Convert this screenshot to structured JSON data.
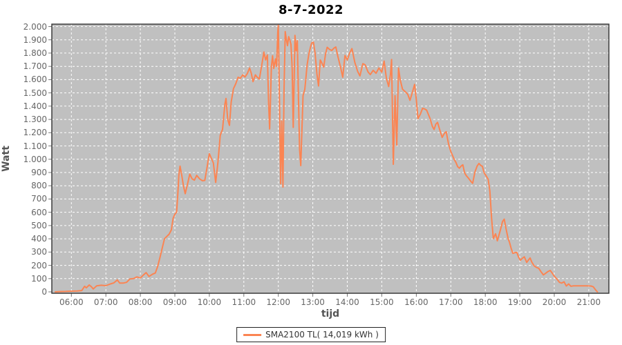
{
  "chart": {
    "title": "8-7-2022",
    "x_axis_label": "tijd",
    "y_axis_label": "Watt",
    "legend_label": "SMA2100 TL( 14,019 kWh )"
  },
  "colors": {
    "series": "#FB8452",
    "plot_background": "#C0C0C0",
    "gridline": "#FFFFFF",
    "plot_border": "#3a3a3a",
    "tick_mark": "#777777",
    "outer_background": "#FFFFFF"
  },
  "chart_data": {
    "type": "line",
    "title": "8-7-2022",
    "xlabel": "tijd",
    "ylabel": "Watt",
    "grid": true,
    "legend_position": "bottom",
    "ylim": [
      0,
      2020
    ],
    "x_domain": [
      "05:26",
      "21:35"
    ],
    "x_ticks": [
      "06:00",
      "07:00",
      "08:00",
      "09:00",
      "10:00",
      "11:00",
      "12:00",
      "13:00",
      "14:00",
      "15:00",
      "16:00",
      "17:00",
      "18:00",
      "19:00",
      "20:00",
      "21:00"
    ],
    "y_tick_values": [
      0,
      100,
      200,
      300,
      400,
      500,
      600,
      700,
      800,
      900,
      1000,
      1100,
      1200,
      1300,
      1400,
      1500,
      1600,
      1700,
      1800,
      1900,
      2000
    ],
    "y_tick_labels": [
      "0",
      "100",
      "200",
      "300",
      "400",
      "500",
      "600",
      "700",
      "800",
      "900",
      "1.000",
      "1.100",
      "1.200",
      "1.300",
      "1.400",
      "1.500",
      "1.600",
      "1.700",
      "1.800",
      "1.900",
      "2.000"
    ],
    "series": [
      {
        "name": "SMA2100 TL( 14,019 kWh )",
        "color": "#FB8452",
        "points": [
          [
            "05:32",
            0
          ],
          [
            "05:40",
            2
          ],
          [
            "05:50",
            3
          ],
          [
            "06:00",
            5
          ],
          [
            "06:10",
            6
          ],
          [
            "06:18",
            10
          ],
          [
            "06:23",
            42
          ],
          [
            "06:26",
            30
          ],
          [
            "06:31",
            52
          ],
          [
            "06:35",
            38
          ],
          [
            "06:38",
            22
          ],
          [
            "06:44",
            46
          ],
          [
            "06:52",
            50
          ],
          [
            "07:00",
            47
          ],
          [
            "07:08",
            60
          ],
          [
            "07:14",
            68
          ],
          [
            "07:20",
            90
          ],
          [
            "07:24",
            66
          ],
          [
            "07:30",
            66
          ],
          [
            "07:36",
            72
          ],
          [
            "07:42",
            98
          ],
          [
            "07:48",
            100
          ],
          [
            "07:54",
            113
          ],
          [
            "08:00",
            105
          ],
          [
            "08:05",
            126
          ],
          [
            "08:10",
            145
          ],
          [
            "08:15",
            116
          ],
          [
            "08:21",
            133
          ],
          [
            "08:26",
            142
          ],
          [
            "08:30",
            190
          ],
          [
            "08:34",
            258
          ],
          [
            "08:38",
            330
          ],
          [
            "08:42",
            400
          ],
          [
            "08:46",
            418
          ],
          [
            "08:50",
            435
          ],
          [
            "08:54",
            468
          ],
          [
            "08:57",
            555
          ],
          [
            "09:00",
            585
          ],
          [
            "09:03",
            600
          ],
          [
            "09:05",
            730
          ],
          [
            "09:07",
            880
          ],
          [
            "09:09",
            948
          ],
          [
            "09:12",
            878
          ],
          [
            "09:15",
            798
          ],
          [
            "09:18",
            740
          ],
          [
            "09:22",
            812
          ],
          [
            "09:26",
            888
          ],
          [
            "09:30",
            852
          ],
          [
            "09:34",
            842
          ],
          [
            "09:38",
            878
          ],
          [
            "09:43",
            852
          ],
          [
            "09:48",
            838
          ],
          [
            "09:52",
            840
          ],
          [
            "09:56",
            938
          ],
          [
            "10:00",
            1042
          ],
          [
            "10:04",
            1002
          ],
          [
            "10:07",
            972
          ],
          [
            "10:11",
            825
          ],
          [
            "10:15",
            980
          ],
          [
            "10:19",
            1180
          ],
          [
            "10:23",
            1225
          ],
          [
            "10:27",
            1415
          ],
          [
            "10:29",
            1458
          ],
          [
            "10:32",
            1300
          ],
          [
            "10:35",
            1255
          ],
          [
            "10:38",
            1430
          ],
          [
            "10:42",
            1532
          ],
          [
            "10:46",
            1570
          ],
          [
            "10:50",
            1618
          ],
          [
            "10:54",
            1610
          ],
          [
            "10:58",
            1636
          ],
          [
            "11:02",
            1620
          ],
          [
            "11:06",
            1645
          ],
          [
            "11:10",
            1688
          ],
          [
            "11:13",
            1648
          ],
          [
            "11:16",
            1585
          ],
          [
            "11:20",
            1636
          ],
          [
            "11:23",
            1620
          ],
          [
            "11:27",
            1604
          ],
          [
            "11:31",
            1705
          ],
          [
            "11:35",
            1808
          ],
          [
            "11:38",
            1748
          ],
          [
            "11:41",
            1786
          ],
          [
            "11:43",
            1430
          ],
          [
            "11:45",
            1228
          ],
          [
            "11:48",
            1700
          ],
          [
            "11:50",
            1780
          ],
          [
            "11:52",
            1684
          ],
          [
            "11:55",
            1756
          ],
          [
            "11:57",
            1700
          ],
          [
            "11:59",
            1958
          ],
          [
            "12:00",
            2010
          ],
          [
            "12:02",
            1430
          ],
          [
            "12:04",
            815
          ],
          [
            "12:06",
            1288
          ],
          [
            "12:08",
            790
          ],
          [
            "12:10",
            1520
          ],
          [
            "12:12",
            1962
          ],
          [
            "12:14",
            1900
          ],
          [
            "12:16",
            1856
          ],
          [
            "12:18",
            1924
          ],
          [
            "12:20",
            1898
          ],
          [
            "12:22",
            1866
          ],
          [
            "12:24",
            1695
          ],
          [
            "12:26",
            1240
          ],
          [
            "12:28",
            1712
          ],
          [
            "12:29",
            1934
          ],
          [
            "12:31",
            1818
          ],
          [
            "12:33",
            1894
          ],
          [
            "12:35",
            1470
          ],
          [
            "12:37",
            1072
          ],
          [
            "12:39",
            952
          ],
          [
            "12:41",
            1210
          ],
          [
            "12:43",
            1480
          ],
          [
            "12:46",
            1526
          ],
          [
            "12:48",
            1610
          ],
          [
            "12:50",
            1708
          ],
          [
            "12:53",
            1790
          ],
          [
            "12:56",
            1846
          ],
          [
            "12:58",
            1876
          ],
          [
            "13:01",
            1882
          ],
          [
            "13:04",
            1796
          ],
          [
            "13:07",
            1646
          ],
          [
            "13:10",
            1552
          ],
          [
            "13:13",
            1748
          ],
          [
            "13:16",
            1724
          ],
          [
            "13:19",
            1694
          ],
          [
            "13:22",
            1790
          ],
          [
            "13:25",
            1844
          ],
          [
            "13:29",
            1828
          ],
          [
            "13:33",
            1820
          ],
          [
            "13:37",
            1838
          ],
          [
            "13:40",
            1846
          ],
          [
            "13:44",
            1768
          ],
          [
            "13:48",
            1698
          ],
          [
            "13:52",
            1618
          ],
          [
            "13:56",
            1782
          ],
          [
            "14:00",
            1748
          ],
          [
            "14:04",
            1800
          ],
          [
            "14:08",
            1834
          ],
          [
            "14:13",
            1730
          ],
          [
            "14:18",
            1662
          ],
          [
            "14:22",
            1628
          ],
          [
            "14:27",
            1720
          ],
          [
            "14:31",
            1712
          ],
          [
            "14:36",
            1658
          ],
          [
            "14:40",
            1638
          ],
          [
            "14:45",
            1670
          ],
          [
            "14:50",
            1648
          ],
          [
            "14:55",
            1688
          ],
          [
            "15:00",
            1656
          ],
          [
            "15:04",
            1740
          ],
          [
            "15:08",
            1610
          ],
          [
            "15:12",
            1548
          ],
          [
            "15:15",
            1638
          ],
          [
            "15:17",
            1752
          ],
          [
            "15:20",
            962
          ],
          [
            "15:23",
            1480
          ],
          [
            "15:26",
            1105
          ],
          [
            "15:29",
            1688
          ],
          [
            "15:32",
            1598
          ],
          [
            "15:36",
            1528
          ],
          [
            "15:41",
            1508
          ],
          [
            "15:45",
            1490
          ],
          [
            "15:49",
            1444
          ],
          [
            "15:53",
            1500
          ],
          [
            "15:57",
            1564
          ],
          [
            "16:00",
            1448
          ],
          [
            "16:03",
            1305
          ],
          [
            "16:07",
            1340
          ],
          [
            "16:11",
            1384
          ],
          [
            "16:15",
            1378
          ],
          [
            "16:18",
            1370
          ],
          [
            "16:21",
            1338
          ],
          [
            "16:24",
            1306
          ],
          [
            "16:28",
            1248
          ],
          [
            "16:31",
            1224
          ],
          [
            "16:34",
            1264
          ],
          [
            "16:37",
            1278
          ],
          [
            "16:41",
            1218
          ],
          [
            "16:45",
            1164
          ],
          [
            "16:49",
            1196
          ],
          [
            "16:52",
            1208
          ],
          [
            "16:56",
            1118
          ],
          [
            "17:00",
            1058
          ],
          [
            "17:03",
            1028
          ],
          [
            "17:06",
            998
          ],
          [
            "17:09",
            976
          ],
          [
            "17:12",
            944
          ],
          [
            "17:15",
            932
          ],
          [
            "17:18",
            948
          ],
          [
            "17:21",
            958
          ],
          [
            "17:24",
            898
          ],
          [
            "17:27",
            876
          ],
          [
            "17:31",
            856
          ],
          [
            "17:35",
            832
          ],
          [
            "17:38",
            818
          ],
          [
            "17:42",
            904
          ],
          [
            "17:46",
            950
          ],
          [
            "17:49",
            968
          ],
          [
            "17:52",
            954
          ],
          [
            "17:55",
            946
          ],
          [
            "17:58",
            898
          ],
          [
            "18:01",
            878
          ],
          [
            "18:05",
            850
          ],
          [
            "18:08",
            760
          ],
          [
            "18:11",
            555
          ],
          [
            "18:14",
            402
          ],
          [
            "18:18",
            438
          ],
          [
            "18:21",
            385
          ],
          [
            "18:26",
            462
          ],
          [
            "18:30",
            530
          ],
          [
            "18:33",
            548
          ],
          [
            "18:36",
            478
          ],
          [
            "18:40",
            398
          ],
          [
            "18:42",
            376
          ],
          [
            "18:45",
            328
          ],
          [
            "18:48",
            290
          ],
          [
            "18:52",
            296
          ],
          [
            "18:55",
            297
          ],
          [
            "18:58",
            262
          ],
          [
            "19:01",
            238
          ],
          [
            "19:05",
            255
          ],
          [
            "19:08",
            264
          ],
          [
            "19:12",
            222
          ],
          [
            "19:15",
            240
          ],
          [
            "19:18",
            256
          ],
          [
            "19:21",
            224
          ],
          [
            "19:25",
            196
          ],
          [
            "19:29",
            184
          ],
          [
            "19:33",
            178
          ],
          [
            "19:37",
            152
          ],
          [
            "19:41",
            128
          ],
          [
            "19:45",
            140
          ],
          [
            "19:49",
            153
          ],
          [
            "19:53",
            162
          ],
          [
            "19:57",
            138
          ],
          [
            "20:00",
            118
          ],
          [
            "20:05",
            95
          ],
          [
            "20:09",
            72
          ],
          [
            "20:13",
            66
          ],
          [
            "20:17",
            76
          ],
          [
            "20:21",
            44
          ],
          [
            "20:25",
            60
          ],
          [
            "20:29",
            42
          ],
          [
            "20:33",
            45
          ],
          [
            "20:40",
            46
          ],
          [
            "20:48",
            45
          ],
          [
            "20:56",
            45
          ],
          [
            "21:04",
            44
          ],
          [
            "21:08",
            38
          ],
          [
            "21:12",
            14
          ],
          [
            "21:15",
            0
          ]
        ]
      }
    ]
  }
}
